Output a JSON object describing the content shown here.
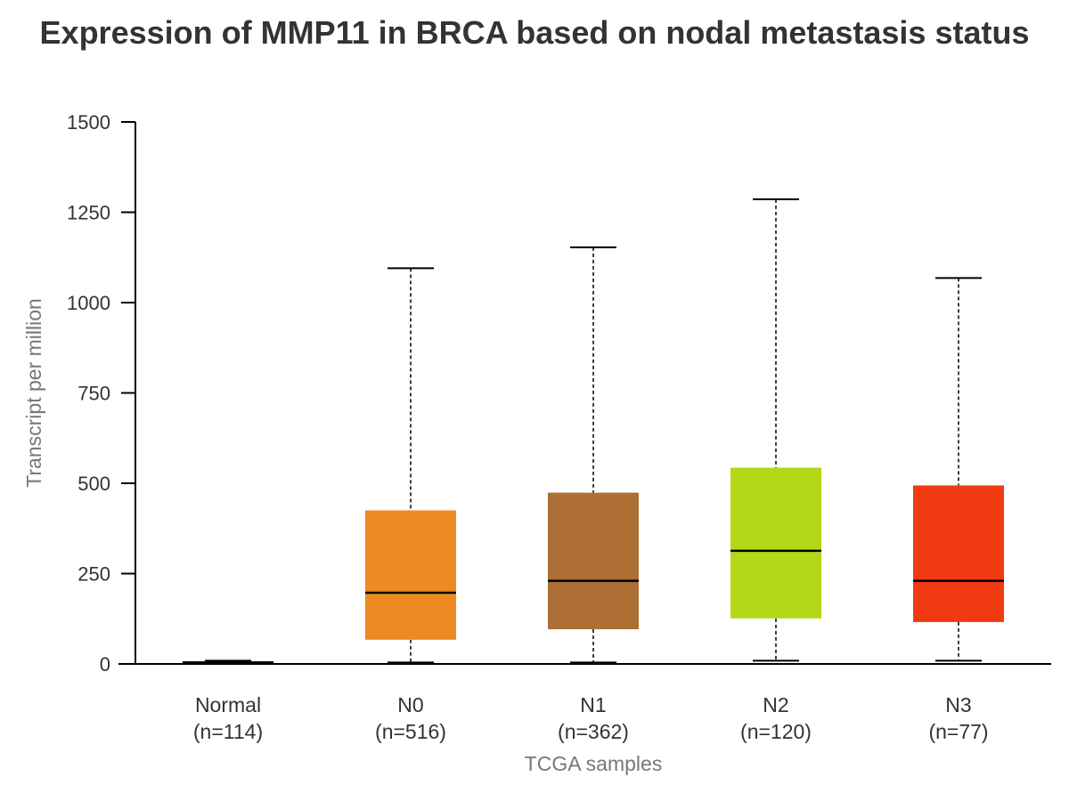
{
  "chart_data": {
    "type": "boxplot",
    "title": "Expression of MMP11 in BRCA based on nodal metastasis status",
    "xlabel": "TCGA samples",
    "ylabel": "Transcript per million",
    "ylim": [
      0,
      1500
    ],
    "yticks": [
      0,
      250,
      500,
      750,
      1000,
      1250,
      1500
    ],
    "grid": false,
    "legend": "none",
    "groups": [
      {
        "name": "Normal",
        "n_label": "(n=114)",
        "color": "#000000",
        "min": 0,
        "q1": 2,
        "median": 4,
        "q3": 7,
        "max": 9
      },
      {
        "name": "N0",
        "n_label": "(n=516)",
        "color": "#EE8A22",
        "min": 4,
        "q1": 67,
        "median": 197,
        "q3": 425,
        "max": 1095
      },
      {
        "name": "N1",
        "n_label": "(n=362)",
        "color": "#AD6F34",
        "min": 4,
        "q1": 96,
        "median": 230,
        "q3": 474,
        "max": 1153
      },
      {
        "name": "N2",
        "n_label": "(n=120)",
        "color": "#B3D817",
        "min": 9,
        "q1": 126,
        "median": 313,
        "q3": 543,
        "max": 1286
      },
      {
        "name": "N3",
        "n_label": "(n=77)",
        "color": "#F03A12",
        "min": 9,
        "q1": 116,
        "median": 230,
        "q3": 494,
        "max": 1068
      }
    ]
  }
}
